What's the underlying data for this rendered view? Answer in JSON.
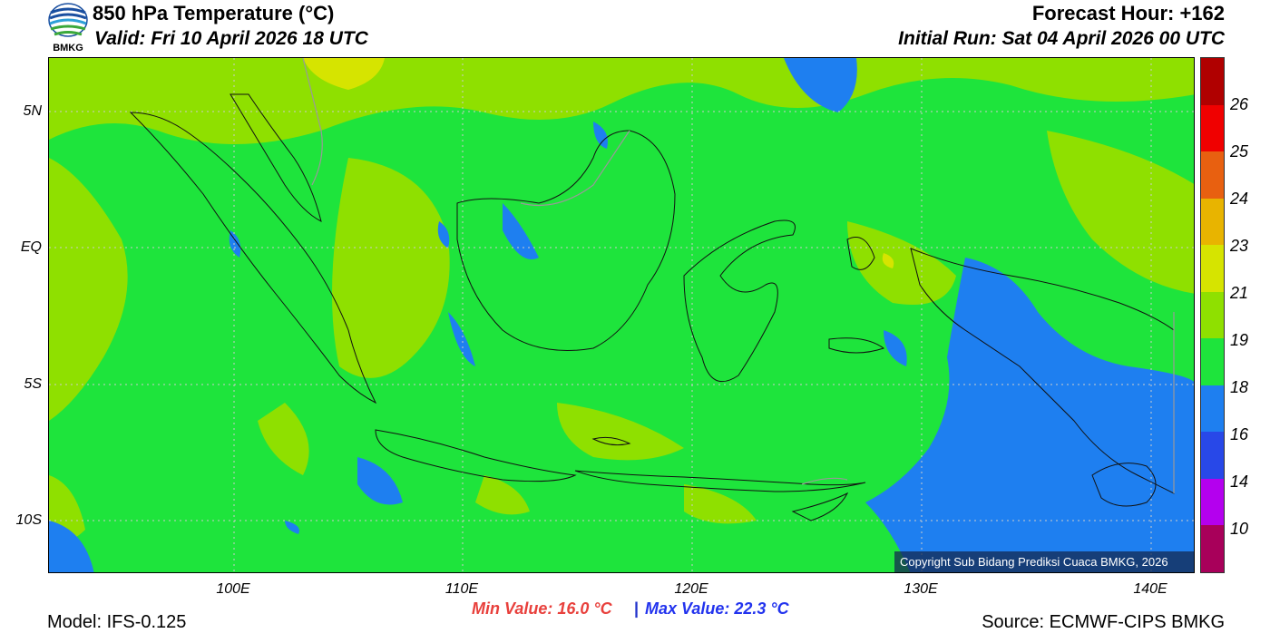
{
  "header": {
    "title": "850 hPa Temperature (°C)",
    "valid": "Valid: Fri 10 April 2026 18 UTC",
    "forecast_hour": "Forecast Hour: +162",
    "initial_run": "Initial Run: Sat 04 April 2026 00 UTC"
  },
  "logo": {
    "text": "BMKG",
    "icon": "bmkg-logo-icon"
  },
  "axes": {
    "lat_labels": [
      "5N",
      "EQ",
      "5S",
      "10S"
    ],
    "lon_labels": [
      "100E",
      "110E",
      "120E",
      "130E",
      "140E"
    ]
  },
  "colorbar": {
    "labels": [
      "26",
      "25",
      "24",
      "23",
      "21",
      "19",
      "18",
      "16",
      "14",
      "10"
    ],
    "colors": [
      "#b00000",
      "#f00000",
      "#e86010",
      "#e8b400",
      "#d6e400",
      "#8fe000",
      "#1ee43c",
      "#1e7ff0",
      "#2848e8",
      "#b400ee",
      "#a8005a"
    ]
  },
  "stats": {
    "min": "Min Value: 16.0 °C",
    "separator": "|",
    "max": "Max Value: 22.3 °C"
  },
  "footer": {
    "model": "Model: IFS-0.125",
    "source": "Source: ECMWF-CIPS BMKG"
  },
  "copyright": "Copyright Sub Bidang Prediksi Cuaca BMKG, 2026",
  "map_colors": {
    "base": "#1ee43c",
    "warm": "#8fe000",
    "cool": "#1e7ff0",
    "hot": "#d6e400",
    "coast": "#111111",
    "border": "#999999",
    "grid": "#cccccc"
  }
}
